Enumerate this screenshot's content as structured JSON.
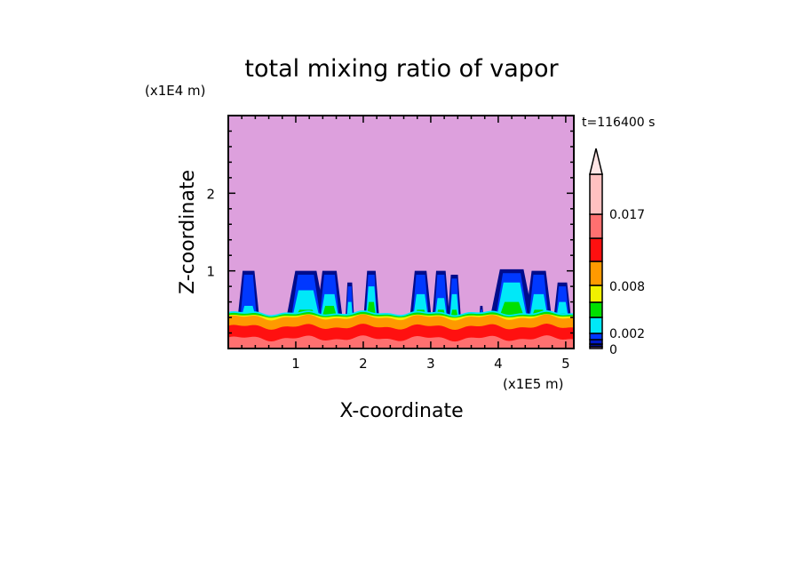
{
  "chart_data": {
    "type": "heatmap",
    "title": "total mixing ratio of vapor",
    "xlabel": "X-coordinate",
    "ylabel": "Z-coordinate",
    "x_unit": "(x1E5 m)",
    "y_unit": "(x1E4 m)",
    "time_label": "t=116400 s",
    "xlim": [
      0,
      5.12
    ],
    "ylim": [
      0,
      3.0
    ],
    "x_ticks": [
      "1",
      "2",
      "3",
      "4",
      "5"
    ],
    "y_ticks": [
      "1",
      "2"
    ],
    "colorbar": {
      "labels": [
        "0",
        "0.002",
        "0.008",
        "0.017"
      ],
      "colors": [
        "#dda0dd",
        "#000c8c",
        "#0018c8",
        "#0038ff",
        "#00e8f8",
        "#00e000",
        "#f0f000",
        "#ff9900",
        "#ff1010",
        "#ff7070",
        "#ffc0c0",
        "#ffe6e6"
      ]
    },
    "background_color": "#dda0dd",
    "layers": [
      {
        "color": "#ff9900",
        "top": 0.4
      },
      {
        "color": "#ff1010",
        "top": 0.28
      },
      {
        "color": "#ff7070",
        "top": 0.13
      }
    ],
    "plumes": [
      {
        "x": 0.3,
        "w": 0.25,
        "top": 1.0,
        "cyan": 0.55,
        "green": 0.45
      },
      {
        "x": 1.15,
        "w": 0.45,
        "top": 1.0,
        "cyan": 0.75,
        "green": 0.5
      },
      {
        "x": 1.5,
        "w": 0.3,
        "top": 1.0,
        "cyan": 0.7,
        "green": 0.55
      },
      {
        "x": 1.8,
        "w": 0.1,
        "top": 0.85,
        "cyan": 0.6,
        "green": 0.45
      },
      {
        "x": 2.12,
        "w": 0.18,
        "top": 1.0,
        "cyan": 0.8,
        "green": 0.6
      },
      {
        "x": 2.85,
        "w": 0.25,
        "top": 1.0,
        "cyan": 0.7,
        "green": 0.5
      },
      {
        "x": 3.15,
        "w": 0.2,
        "top": 1.0,
        "cyan": 0.65,
        "green": 0.5
      },
      {
        "x": 3.35,
        "w": 0.15,
        "top": 0.95,
        "cyan": 0.7,
        "green": 0.5
      },
      {
        "x": 3.75,
        "w": 0.05,
        "top": 0.55,
        "cyan": 0.45,
        "green": 0.42
      },
      {
        "x": 4.2,
        "w": 0.5,
        "top": 1.02,
        "cyan": 0.85,
        "green": 0.6
      },
      {
        "x": 4.6,
        "w": 0.3,
        "top": 1.0,
        "cyan": 0.7,
        "green": 0.5
      },
      {
        "x": 4.95,
        "w": 0.2,
        "top": 0.85,
        "cyan": 0.6,
        "green": 0.45
      }
    ]
  }
}
